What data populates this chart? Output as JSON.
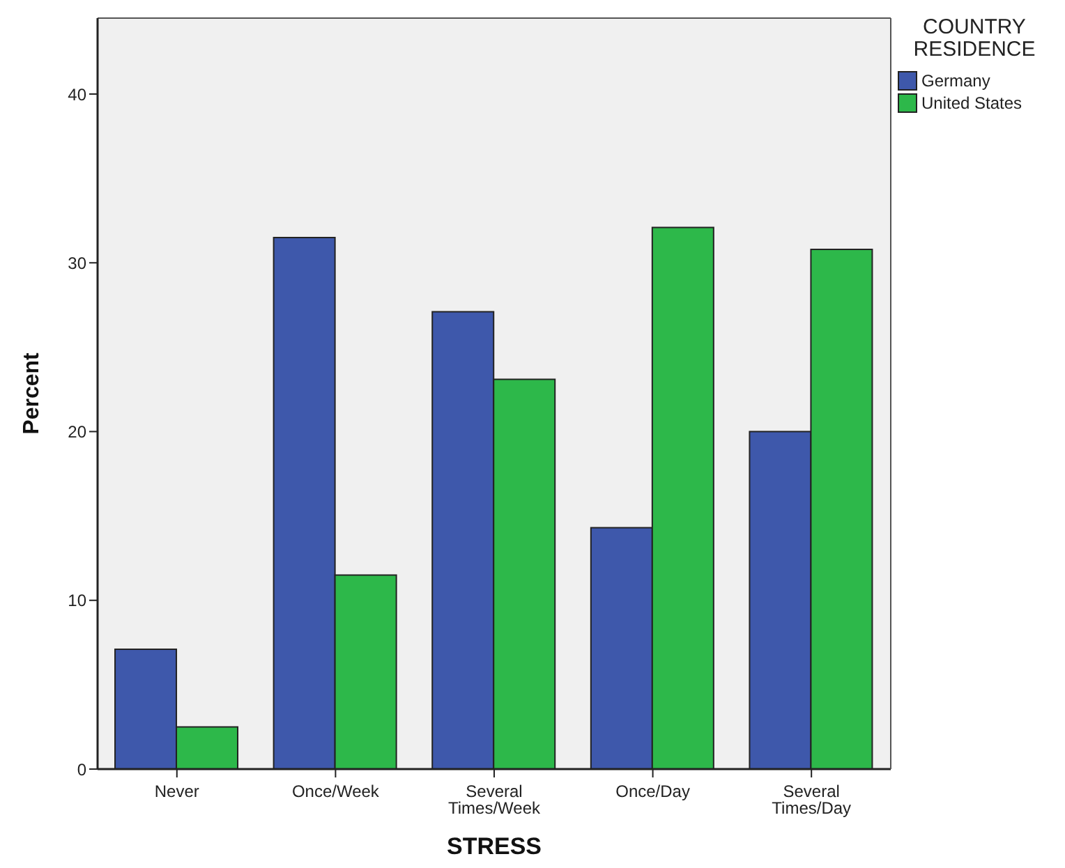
{
  "chart_data": {
    "type": "bar",
    "xlabel": "STRESS",
    "ylabel": "Percent",
    "legend_title": "COUNTRY RESIDENCE",
    "categories": [
      "Never",
      "Once/Week",
      "Several Times/Week",
      "Once/Day",
      "Several Times/Day"
    ],
    "series": [
      {
        "name": "Germany",
        "color": "#3e58ab",
        "values": [
          7.1,
          31.5,
          27.1,
          14.3,
          20.0
        ]
      },
      {
        "name": "United States",
        "color": "#2db84a",
        "values": [
          2.5,
          11.5,
          23.1,
          32.1,
          30.8
        ]
      }
    ],
    "ylim": [
      0,
      44.5
    ],
    "yticks": [
      0,
      10,
      20,
      30,
      40
    ],
    "grid": false,
    "legend": "top right"
  }
}
